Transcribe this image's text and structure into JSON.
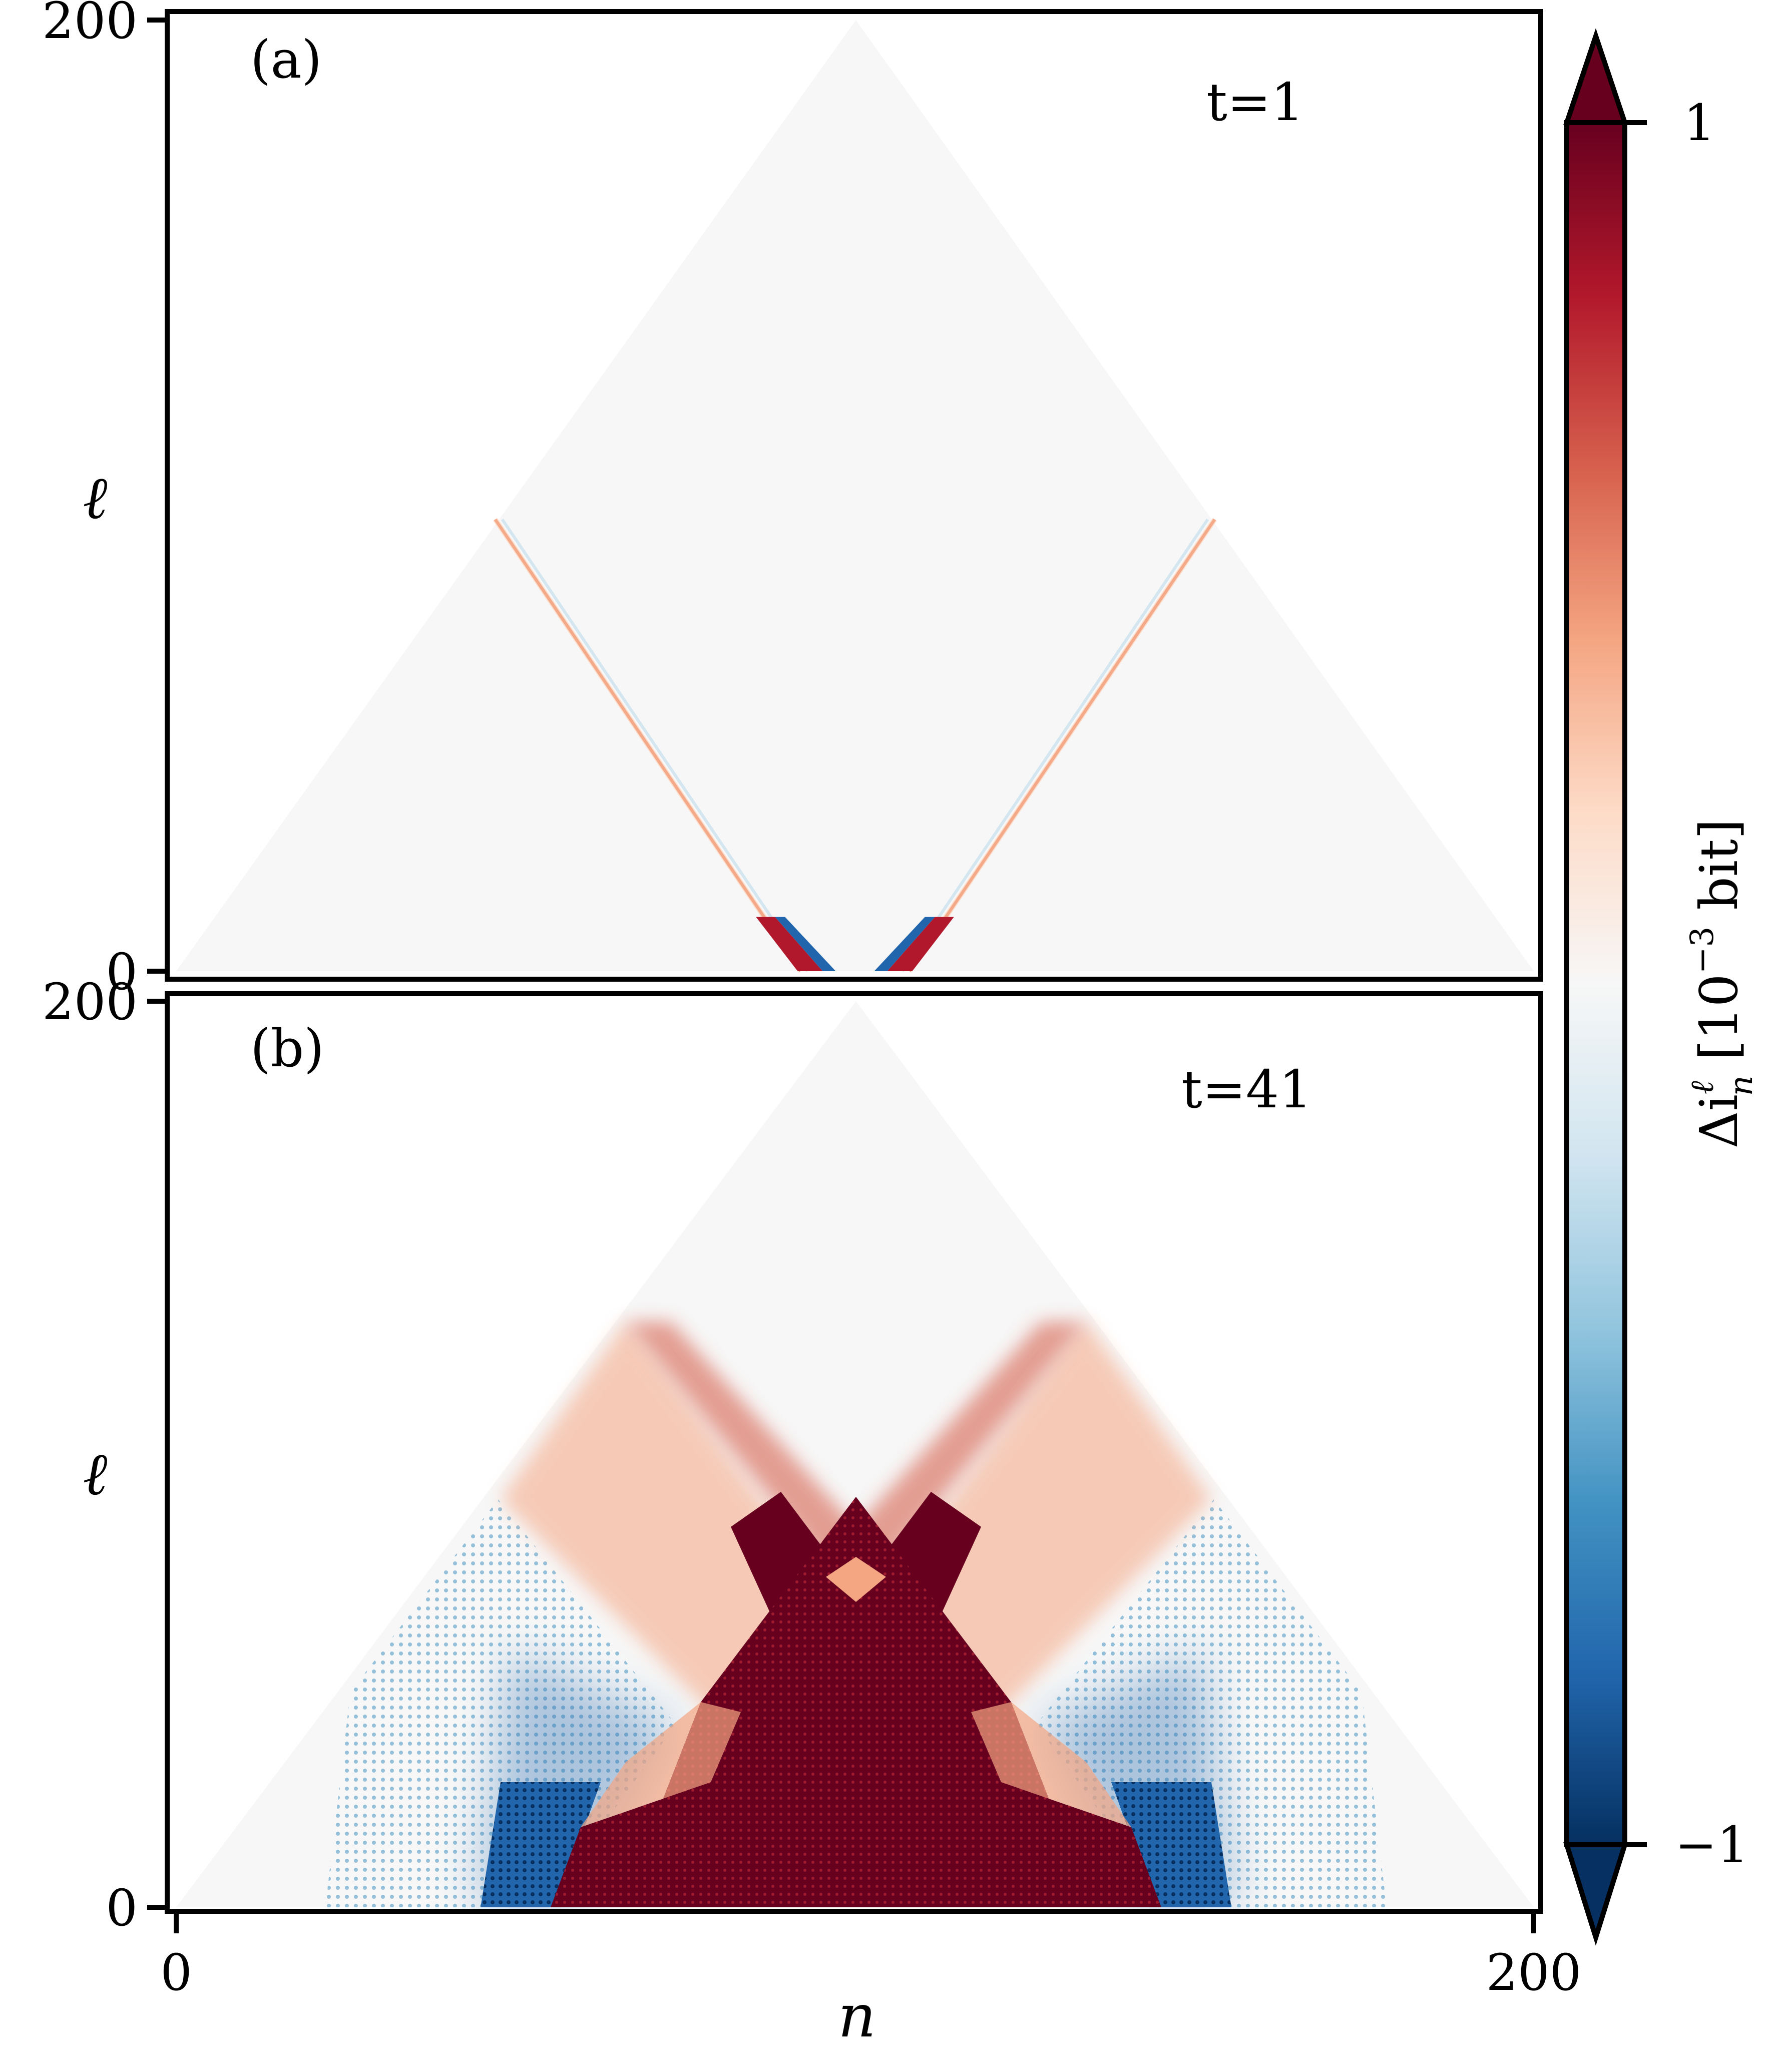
{
  "chart_data": [
    {
      "type": "heatmap",
      "panel_label": "(a)",
      "annotation": "t=1",
      "ylabel": "ℓ",
      "yticks": [
        "0",
        "200"
      ],
      "xlim": [
        0,
        200
      ],
      "ylim": [
        0,
        200
      ],
      "lightcone_bands": [
        {
          "n_start": 92,
          "n_end": 47,
          "ell_top": 95
        },
        {
          "n_start": 108,
          "n_end": 153,
          "ell_top": 95
        }
      ]
    },
    {
      "type": "heatmap",
      "panel_label": "(b)",
      "annotation": "t=41",
      "ylabel": "ℓ",
      "yticks": [
        "0",
        "200"
      ],
      "xlabel": "n",
      "xticks": [
        "0",
        "200"
      ],
      "xlim": [
        0,
        200
      ],
      "ylim": [
        0,
        200
      ],
      "regions": {
        "central_core": {
          "n_center": 100,
          "half_width_bottom": 44,
          "ell_top": 110,
          "value": 1
        },
        "side_triangles": [
          {
            "n_left": 56,
            "n_right": 88,
            "ell_top": 22,
            "value": 1
          },
          {
            "n_left": 112,
            "n_right": 144,
            "ell_top": 22,
            "value": 1
          }
        ],
        "blue_zones": [
          {
            "n_from": 48,
            "n_to": 68,
            "value": -0.7
          },
          {
            "n_from": 132,
            "n_to": 152,
            "value": -0.7
          }
        ],
        "light_red_wedge_ell_top": 145
      }
    }
  ],
  "colorbar": {
    "colormap": "RdBu_r",
    "vmin": -1,
    "vmax": 1,
    "extend": "both",
    "ticks": [
      "1",
      "−1"
    ],
    "label_main": "Δi",
    "label_sup": "ℓ",
    "label_sub": "n",
    "label_unit_prefix": "[10",
    "label_unit_exp": "−3",
    "label_unit_suffix": " bit]",
    "colors": {
      "dark_red": "#67001f",
      "red": "#b2182b",
      "salmon": "#d6604d",
      "peach": "#f4a582",
      "light_peach": "#fddbc7",
      "white": "#f7f7f7",
      "light_blue": "#d1e5f0",
      "sky": "#92c5de",
      "blue": "#4393c3",
      "mid_blue": "#2166ac",
      "dark_blue": "#053061"
    }
  }
}
